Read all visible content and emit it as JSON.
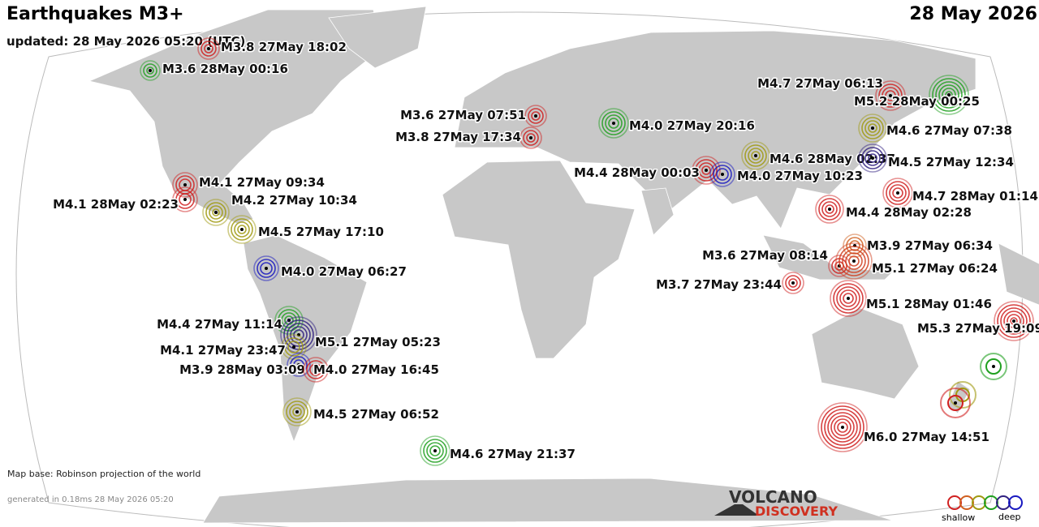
{
  "header": {
    "title": "Earthquakes M3+",
    "date": "28 May 2026",
    "updated": "updated: 28 May 2026 05:20 (UTC)"
  },
  "quakes": [
    {
      "label": "M3.8 27May 18:02",
      "color": "#d02020"
    },
    {
      "label": "M3.6 28May 00:16",
      "color": "#20a020"
    },
    {
      "label": "M4.7 27May 06:13",
      "color": "#d02020"
    },
    {
      "label": "M5.2 28May 00:25",
      "color": "#20a020"
    },
    {
      "label": "M3.6 27May 07:51",
      "color": "#d02020"
    },
    {
      "label": "M4.0 27May 20:16",
      "color": "#20a020"
    },
    {
      "label": "M3.8 27May 17:34",
      "color": "#d02020"
    },
    {
      "label": "M4.6 27May 07:38",
      "color": "#a09a10"
    },
    {
      "label": "M4.6 28May 02:37",
      "color": "#a09a10"
    },
    {
      "label": "M4.5 27May 12:34",
      "color": "#302080"
    },
    {
      "label": "M4.4 28May 00:03",
      "color": "#d02020"
    },
    {
      "label": "M4.0 27May 10:23",
      "color": "#1818c0"
    },
    {
      "label": "M4.1 27May 09:34",
      "color": "#d02020"
    },
    {
      "label": "M4.1 28May 02:23",
      "color": "#d02020"
    },
    {
      "label": "M4.2 27May 10:34",
      "color": "#a09a10"
    },
    {
      "label": "M4.5 27May 17:10",
      "color": "#a09a10"
    },
    {
      "label": "M4.7 28May 01:14",
      "color": "#d02020"
    },
    {
      "label": "M4.4 28May 02:28",
      "color": "#d02020"
    },
    {
      "label": "M3.9 27May 06:34",
      "color": "#d06020"
    },
    {
      "label": "M3.6 27May 08:14",
      "color": "#d02020"
    },
    {
      "label": "M5.1 27May 06:24",
      "color": "#d04020"
    },
    {
      "label": "M4.0 27May 06:27",
      "color": "#1818c0"
    },
    {
      "label": "M3.7 27May 23:44",
      "color": "#d02020"
    },
    {
      "label": "M5.1 28May 01:46",
      "color": "#d02020"
    },
    {
      "label": "M5.3 27May 19:09",
      "color": "#d02020"
    },
    {
      "label": "M4.4 27May 11:14",
      "color": "#20a020"
    },
    {
      "label": "M5.1 27May 05:23",
      "color": "#302080"
    },
    {
      "label": "M4.1 27May 23:47",
      "color": "#a09a10"
    },
    {
      "label": "M3.9 28May 03:09",
      "color": "#1818c0"
    },
    {
      "label": "M4.0 27May 16:45",
      "color": "#d02020"
    },
    {
      "label": "M4.5 27May 06:52",
      "color": "#a09a10"
    },
    {
      "label": "M6.0 27May 14:51",
      "color": "#d02020"
    },
    {
      "label": "M4.6 27May 21:37",
      "color": "#20a020"
    }
  ],
  "footer": {
    "map_base": "Map base: Robinson projection of the world",
    "generated": "generated in 0.18ms 28 May 2026 05:20"
  },
  "logo": {
    "line1": "VOLCANO",
    "line2": "DISCOVERY"
  },
  "legend": {
    "shallow": "shallow",
    "deep": "deep"
  }
}
